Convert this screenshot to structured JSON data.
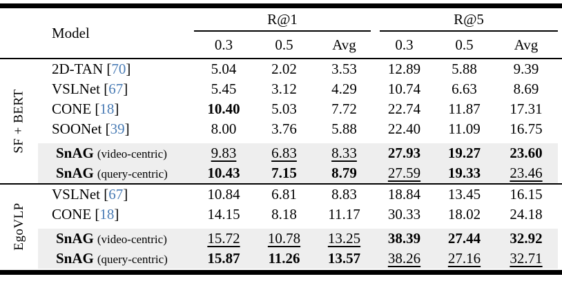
{
  "table": {
    "header": {
      "model_label": "Model",
      "col_groups": [
        "R@1",
        "R@5"
      ],
      "subcols": [
        "0.3",
        "0.5",
        "Avg",
        "0.3",
        "0.5",
        "Avg"
      ]
    },
    "groups": [
      {
        "group_label": "SF + BERT",
        "rows": [
          {
            "model": "2D-TAN",
            "cite": "70",
            "shaded": false,
            "cells": [
              {
                "v": "5.04"
              },
              {
                "v": "2.02"
              },
              {
                "v": "3.53"
              },
              {
                "v": "12.89"
              },
              {
                "v": "5.88"
              },
              {
                "v": "9.39"
              }
            ]
          },
          {
            "model": "VSLNet",
            "cite": "67",
            "shaded": false,
            "cells": [
              {
                "v": "5.45"
              },
              {
                "v": "3.12"
              },
              {
                "v": "4.29"
              },
              {
                "v": "10.74"
              },
              {
                "v": "6.63"
              },
              {
                "v": "8.69"
              }
            ]
          },
          {
            "model": "CONE",
            "cite": "18",
            "shaded": false,
            "cells": [
              {
                "v": "10.40",
                "s": "b"
              },
              {
                "v": "5.03"
              },
              {
                "v": "7.72"
              },
              {
                "v": "22.74"
              },
              {
                "v": "11.87"
              },
              {
                "v": "17.31"
              }
            ]
          },
          {
            "model": "SOONet",
            "cite": "39",
            "shaded": false,
            "cells": [
              {
                "v": "8.00"
              },
              {
                "v": "3.76"
              },
              {
                "v": "5.88"
              },
              {
                "v": "22.40"
              },
              {
                "v": "11.09"
              },
              {
                "v": "16.75"
              }
            ]
          },
          {
            "model": "SnAG",
            "variant": "(video-centric)",
            "shaded": true,
            "cells": [
              {
                "v": "9.83",
                "s": "u"
              },
              {
                "v": "6.83",
                "s": "u"
              },
              {
                "v": "8.33",
                "s": "u"
              },
              {
                "v": "27.93",
                "s": "b"
              },
              {
                "v": "19.27",
                "s": "b"
              },
              {
                "v": "23.60",
                "s": "b"
              }
            ]
          },
          {
            "model": "SnAG",
            "variant": "(query-centric)",
            "shaded": true,
            "cells": [
              {
                "v": "10.43",
                "s": "b"
              },
              {
                "v": "7.15",
                "s": "b"
              },
              {
                "v": "8.79",
                "s": "b"
              },
              {
                "v": "27.59",
                "s": "u"
              },
              {
                "v": "19.33",
                "s": "b"
              },
              {
                "v": "23.46",
                "s": "u"
              }
            ]
          }
        ]
      },
      {
        "group_label": "EgoVLP",
        "rows": [
          {
            "model": "VSLNet",
            "cite": "67",
            "shaded": false,
            "cells": [
              {
                "v": "10.84"
              },
              {
                "v": "6.81"
              },
              {
                "v": "8.83"
              },
              {
                "v": "18.84"
              },
              {
                "v": "13.45"
              },
              {
                "v": "16.15"
              }
            ]
          },
          {
            "model": "CONE",
            "cite": "18",
            "shaded": false,
            "cells": [
              {
                "v": "14.15"
              },
              {
                "v": "8.18"
              },
              {
                "v": "11.17"
              },
              {
                "v": "30.33"
              },
              {
                "v": "18.02"
              },
              {
                "v": "24.18"
              }
            ]
          },
          {
            "model": "SnAG",
            "variant": "(video-centric)",
            "shaded": true,
            "cells": [
              {
                "v": "15.72",
                "s": "u"
              },
              {
                "v": "10.78",
                "s": "u"
              },
              {
                "v": "13.25",
                "s": "u"
              },
              {
                "v": "38.39",
                "s": "b"
              },
              {
                "v": "27.44",
                "s": "b"
              },
              {
                "v": "32.92",
                "s": "b"
              }
            ]
          },
          {
            "model": "SnAG",
            "variant": "(query-centric)",
            "shaded": true,
            "cells": [
              {
                "v": "15.87",
                "s": "b"
              },
              {
                "v": "11.26",
                "s": "b"
              },
              {
                "v": "13.57",
                "s": "b"
              },
              {
                "v": "38.26",
                "s": "u"
              },
              {
                "v": "27.16",
                "s": "u"
              },
              {
                "v": "32.71",
                "s": "u"
              }
            ]
          }
        ]
      }
    ],
    "colors": {
      "citation": "#4a7cb5",
      "row_shading": "#eeeeee",
      "rule": "#000000"
    }
  }
}
